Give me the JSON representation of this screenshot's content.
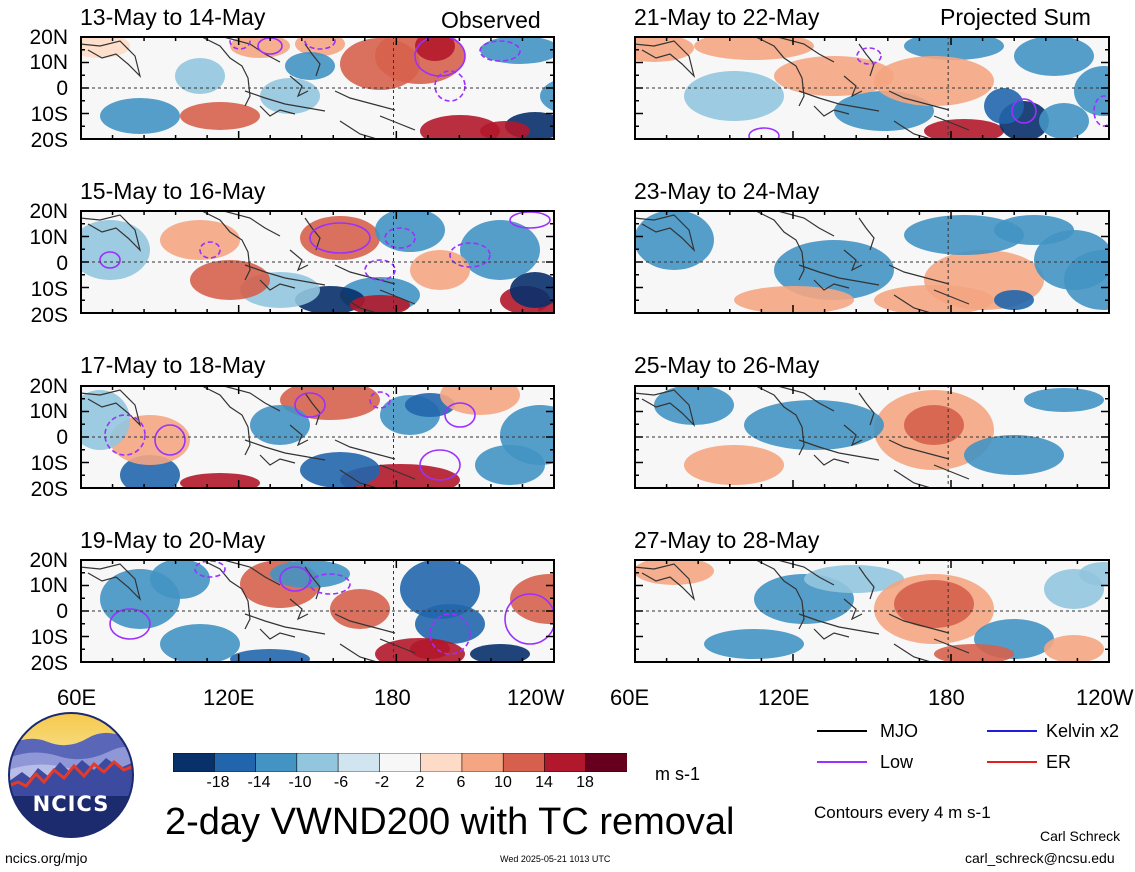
{
  "column_headers": {
    "left": "Observed",
    "right": "Projected Sum"
  },
  "panels": {
    "left": [
      "13-May to 14-May",
      "15-May to 16-May",
      "17-May to 18-May",
      "19-May to 20-May"
    ],
    "right": [
      "21-May to 22-May",
      "23-May to 24-May",
      "25-May to 26-May",
      "27-May to 28-May"
    ]
  },
  "lat_labels": [
    "20N",
    "10N",
    "0",
    "10S",
    "20S"
  ],
  "lon_labels": [
    "60E",
    "120E",
    "180",
    "120W"
  ],
  "colorbar": {
    "labels": [
      "-18",
      "-14",
      "-10",
      "-6",
      "-2",
      "2",
      "6",
      "10",
      "14",
      "18"
    ],
    "colors": [
      "#08306b",
      "#2166ac",
      "#4393c3",
      "#92c5de",
      "#d1e5f0",
      "#f7f7f7",
      "#fddbc7",
      "#f4a582",
      "#d6604d",
      "#b2182b",
      "#67001f"
    ],
    "units": "m s-1"
  },
  "legend": {
    "items": [
      {
        "label": "MJO",
        "color": "#000000"
      },
      {
        "label": "Kelvin x2",
        "color": "#1f1fd9"
      },
      {
        "label": "Low",
        "color": "#9b30ff"
      },
      {
        "label": "ER",
        "color": "#e0201f"
      }
    ],
    "note": "Contours every 4 m s-1"
  },
  "title": "2-day VWND200 with TC removal",
  "logo_text": "NCICS",
  "footer": {
    "url": "ncics.org/mjo",
    "timestamp": "Wed 2025-05-21 1013 UTC",
    "author": "Carl Schreck",
    "email": "carl_schreck@ncsu.edu"
  }
}
